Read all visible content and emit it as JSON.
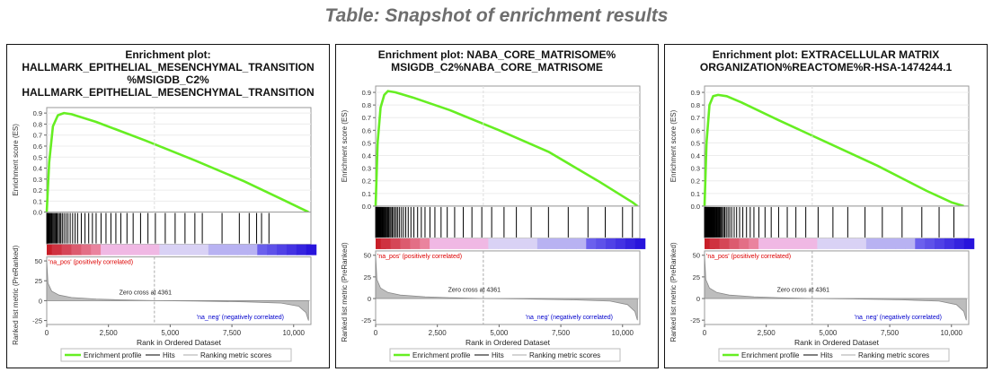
{
  "page": {
    "heading": "Table: Snapshot of enrichment results"
  },
  "chart_data": [
    {
      "type": "line",
      "title": [
        "Enrichment plot:",
        "HALLMARK_EPITHELIAL_MESENCHYMAL_TRANSITION",
        "%MSIGDB_C2%",
        "HALLMARK_EPITHELIAL_MESENCHYMAL_TRANSITION"
      ],
      "es_ylabel": "Enrichment score (ES)",
      "es_ticks": [
        0.0,
        0.1,
        0.2,
        0.3,
        0.4,
        0.5,
        0.6,
        0.7,
        0.8,
        0.9
      ],
      "es_ylim": [
        0,
        0.95
      ],
      "es_curve": {
        "x": [
          0,
          100,
          250,
          450,
          700,
          1000,
          2000,
          4000,
          6000,
          8000,
          9500,
          10600
        ],
        "y": [
          0,
          0.45,
          0.78,
          0.88,
          0.9,
          0.89,
          0.82,
          0.65,
          0.47,
          0.28,
          0.12,
          0.0
        ]
      },
      "hits": [
        5,
        12,
        20,
        30,
        45,
        60,
        80,
        100,
        130,
        160,
        190,
        220,
        260,
        300,
        340,
        380,
        420,
        470,
        520,
        570,
        630,
        700,
        780,
        860,
        950,
        1050,
        1150,
        1250,
        1400,
        1550,
        1700,
        1850,
        2000,
        2200,
        2400,
        2600,
        2800,
        3000,
        3250,
        3500,
        3800,
        4100,
        4400,
        4800,
        5200,
        5600,
        6000,
        6300,
        7100,
        7800,
        8200,
        8500,
        8700,
        9000
      ],
      "ranked_ylabel": "Ranked list metric (PreRanked)",
      "ranked_ticks": [
        50,
        25,
        0,
        -25
      ],
      "ranked_ylim": [
        -30,
        55
      ],
      "ranked_metric": {
        "x": [
          0,
          50,
          200,
          500,
          1000,
          2000,
          3000,
          4361,
          6000,
          8000,
          9500,
          10200,
          10500,
          10600
        ],
        "y": [
          50,
          22,
          12,
          7,
          4,
          2,
          1,
          0,
          -0.5,
          -1.5,
          -3,
          -7,
          -15,
          -25
        ]
      },
      "na_pos_label": "'na_pos' (positively correlated)",
      "na_neg_label": "'na_neg' (negatively correlated)",
      "zero_cross_label": "Zero cross at 4361",
      "zero_cross": 4361,
      "x_ticks": [
        0,
        2500,
        5000,
        7500,
        10000
      ],
      "x_tick_labels": [
        "0",
        "2,500",
        "5,000",
        "7,500",
        "10,000"
      ],
      "xlim": [
        0,
        10700
      ],
      "xlabel": "Rank in Ordered Dataset",
      "legend": [
        "Enrichment profile",
        "Hits",
        "Ranking metric scores"
      ],
      "colors": {
        "es": "#66ee22",
        "ranked": "#888888",
        "pos_label": "#dd0000",
        "neg_label": "#0000cc"
      }
    },
    {
      "type": "line",
      "title": [
        "Enrichment plot: NABA_CORE_MATRISOME%",
        "MSIGDB_C2%NABA_CORE_MATRISOME"
      ],
      "es_ylabel": "Enrichment score (ES)",
      "es_ticks": [
        0.0,
        0.1,
        0.2,
        0.3,
        0.4,
        0.5,
        0.6,
        0.7,
        0.8,
        0.9
      ],
      "es_ylim": [
        0,
        0.95
      ],
      "es_curve": {
        "x": [
          0,
          80,
          200,
          350,
          500,
          800,
          1500,
          3000,
          5000,
          7000,
          9000,
          10400,
          10600
        ],
        "y": [
          0,
          0.5,
          0.78,
          0.88,
          0.91,
          0.9,
          0.86,
          0.76,
          0.6,
          0.43,
          0.2,
          0.03,
          0.0
        ]
      },
      "hits": [
        5,
        10,
        18,
        26,
        35,
        45,
        55,
        65,
        78,
        90,
        105,
        120,
        138,
        155,
        175,
        195,
        215,
        240,
        265,
        290,
        320,
        350,
        380,
        415,
        450,
        490,
        530,
        575,
        620,
        670,
        720,
        780,
        840,
        900,
        970,
        1050,
        1130,
        1220,
        1320,
        1430,
        1550,
        1700,
        1850,
        2000,
        2200,
        2400,
        2650,
        2900,
        3200,
        3550,
        3900,
        4300,
        4700,
        5200,
        5700,
        6300,
        7000,
        7800,
        8600,
        9300,
        10000,
        10400
      ],
      "ranked_ylabel": "Ranked list metric (PreRanked)",
      "ranked_ticks": [
        50,
        25,
        0,
        -25
      ],
      "ranked_ylim": [
        -30,
        55
      ],
      "ranked_metric": {
        "x": [
          0,
          50,
          200,
          500,
          1000,
          2000,
          3000,
          4361,
          6000,
          8000,
          9500,
          10200,
          10500,
          10600
        ],
        "y": [
          50,
          22,
          12,
          7,
          4,
          2,
          1,
          0,
          -0.5,
          -1.5,
          -3,
          -7,
          -15,
          -25
        ]
      },
      "na_pos_label": "'na_pos' (positively correlated)",
      "na_neg_label": "'na_neg' (negatively correlated)",
      "zero_cross_label": "Zero cross at 4361",
      "zero_cross": 4361,
      "x_ticks": [
        0,
        2500,
        5000,
        7500,
        10000
      ],
      "x_tick_labels": [
        "0",
        "2,500",
        "5,000",
        "7,500",
        "10,000"
      ],
      "xlim": [
        0,
        10700
      ],
      "xlabel": "Rank in Ordered Dataset",
      "legend": [
        "Enrichment profile",
        "Hits",
        "Ranking metric scores"
      ],
      "colors": {
        "es": "#66ee22",
        "ranked": "#888888",
        "pos_label": "#dd0000",
        "neg_label": "#0000cc"
      }
    },
    {
      "type": "line",
      "title": [
        "Enrichment plot: EXTRACELLULAR MATRIX",
        "ORGANIZATION%REACTOME%R-HSA-1474244.1"
      ],
      "es_ylabel": "Enrichment score (ES)",
      "es_ticks": [
        0.0,
        0.1,
        0.2,
        0.3,
        0.4,
        0.5,
        0.6,
        0.7,
        0.8,
        0.9
      ],
      "es_ylim": [
        0,
        0.95
      ],
      "es_curve": {
        "x": [
          0,
          80,
          200,
          350,
          550,
          900,
          1500,
          3000,
          5000,
          7000,
          9000,
          10000,
          10500
        ],
        "y": [
          0,
          0.5,
          0.8,
          0.87,
          0.88,
          0.87,
          0.82,
          0.68,
          0.5,
          0.32,
          0.12,
          0.03,
          0.0
        ]
      },
      "hits": [
        3,
        8,
        14,
        20,
        27,
        34,
        42,
        50,
        59,
        68,
        78,
        88,
        99,
        110,
        122,
        135,
        148,
        162,
        176,
        191,
        207,
        224,
        242,
        261,
        281,
        302,
        324,
        347,
        371,
        396,
        422,
        449,
        477,
        506,
        536,
        567,
        600,
        640,
        680,
        720,
        770,
        820,
        880,
        950,
        1020,
        1100,
        1200,
        1300,
        1420,
        1550,
        1700,
        1850,
        2000,
        2200,
        2450,
        2700,
        3000,
        3350,
        3700,
        4100,
        4600,
        5200,
        5800,
        6500,
        7200,
        8000,
        8800,
        9500,
        10100
      ],
      "ranked_ylabel": "Ranked list metric (PreRanked)",
      "ranked_ticks": [
        50,
        25,
        0,
        -25
      ],
      "ranked_ylim": [
        -30,
        55
      ],
      "ranked_metric": {
        "x": [
          0,
          50,
          200,
          500,
          1000,
          2000,
          3000,
          4361,
          6000,
          8000,
          9500,
          10200,
          10500,
          10600
        ],
        "y": [
          50,
          22,
          12,
          7,
          4,
          2,
          1,
          0,
          -0.5,
          -1.5,
          -3,
          -7,
          -15,
          -25
        ]
      },
      "na_pos_label": "'na_pos' (positively correlated)",
      "na_neg_label": "'na_neg' (negatively correlated)",
      "zero_cross_label": "Zero cross at 4361",
      "zero_cross": 4361,
      "x_ticks": [
        0,
        2500,
        5000,
        7500,
        10000
      ],
      "x_tick_labels": [
        "0",
        "2,500",
        "5,000",
        "7,500",
        "10,000"
      ],
      "xlim": [
        0,
        10700
      ],
      "xlabel": "Rank in Ordered Dataset",
      "legend": [
        "Enrichment profile",
        "Hits",
        "Ranking metric scores"
      ],
      "colors": {
        "es": "#66ee22",
        "ranked": "#888888",
        "pos_label": "#dd0000",
        "neg_label": "#0000cc"
      }
    }
  ]
}
